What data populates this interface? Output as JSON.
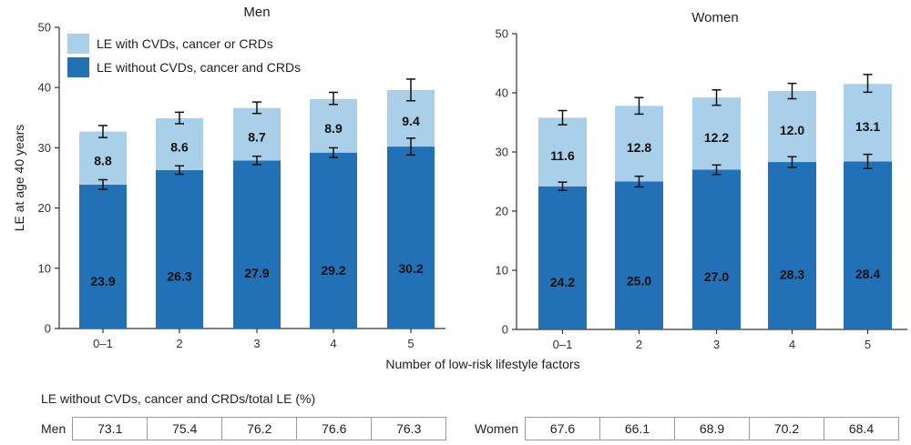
{
  "colors": {
    "dark_bar": "#2270b5",
    "light_bar": "#a9cfe9",
    "axis": "#333333"
  },
  "chart_data": [
    {
      "type": "bar",
      "stacked": true,
      "title": "Men",
      "ylabel": "LE at age 40 years",
      "xlabel": "Number of low-risk lifestyle factors",
      "ylim": [
        0,
        50
      ],
      "yticks": [
        0,
        10,
        20,
        30,
        40,
        50
      ],
      "categories": [
        "0–1",
        "2",
        "3",
        "4",
        "5"
      ],
      "series": [
        {
          "name": "LE without CVDs, cancer and CRDs",
          "values": [
            23.9,
            26.3,
            27.9,
            29.2,
            30.2
          ],
          "error_low": [
            23.1,
            25.6,
            27.2,
            28.4,
            28.8
          ],
          "error_high": [
            24.7,
            27.0,
            28.6,
            30.0,
            31.6
          ]
        },
        {
          "name": "LE with CVDs, cancer or CRDs",
          "values": [
            8.8,
            8.6,
            8.7,
            8.9,
            9.4
          ],
          "error_low": [
            31.7,
            34.0,
            35.7,
            37.2,
            37.8
          ],
          "error_high": [
            33.7,
            35.9,
            37.6,
            39.2,
            41.4
          ]
        }
      ],
      "legend": "top-left"
    },
    {
      "type": "bar",
      "stacked": true,
      "title": "Women",
      "ylabel": "",
      "xlabel": "Number of low-risk lifestyle factors",
      "ylim": [
        0,
        50
      ],
      "yticks": [
        0,
        10,
        20,
        30,
        40,
        50
      ],
      "categories": [
        "0–1",
        "2",
        "3",
        "4",
        "5"
      ],
      "series": [
        {
          "name": "LE without CVDs, cancer and CRDs",
          "values": [
            24.2,
            25.0,
            27.0,
            28.3,
            28.4
          ],
          "error_low": [
            23.5,
            24.1,
            26.2,
            27.4,
            27.2
          ],
          "error_high": [
            24.9,
            25.9,
            27.8,
            29.2,
            29.6
          ]
        },
        {
          "name": "LE with CVDs, cancer or CRDs",
          "values": [
            11.6,
            12.8,
            12.2,
            12.0,
            13.1
          ],
          "error_low": [
            34.6,
            36.4,
            37.9,
            39.0,
            40.1
          ],
          "error_high": [
            37.0,
            39.2,
            40.5,
            41.6,
            43.1
          ]
        }
      ]
    }
  ],
  "table": {
    "caption": "LE without CVDs, cancer and CRDs/total LE (%)",
    "men": {
      "label": "Men",
      "values": [
        "73.1",
        "75.4",
        "76.2",
        "76.6",
        "76.3"
      ]
    },
    "women": {
      "label": "Women",
      "values": [
        "67.6",
        "66.1",
        "68.9",
        "70.2",
        "68.4"
      ]
    }
  }
}
